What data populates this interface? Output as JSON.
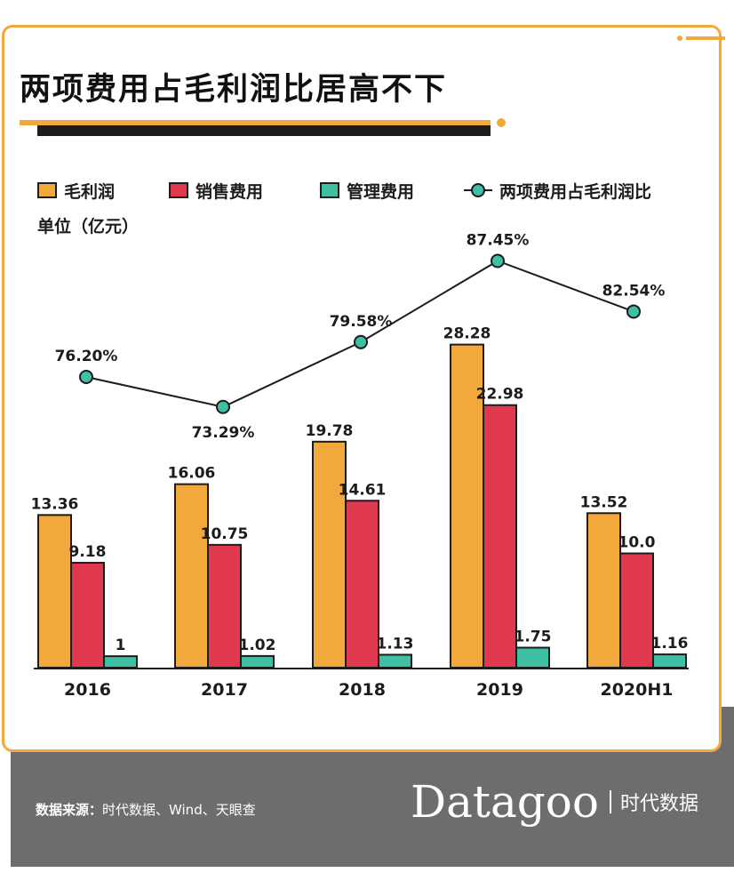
{
  "title": "两项费用占毛利润比居高不下",
  "unit": "单位（亿元）",
  "source_label": "数据来源：",
  "source_text": "时代数据、Wind、天眼查",
  "brand": {
    "name": "Datagoo",
    "chinese": "时代数据"
  },
  "colors": {
    "gross_profit": "#f0a93a",
    "sales_expense": "#e0384f",
    "admin_expense": "#3fbfa3",
    "ratio_line": "#1c1c1c",
    "accent": "#f0a93a",
    "footer": "#6e6c6f"
  },
  "legend": {
    "gross_profit": "毛利润",
    "sales_expense": "销售费用",
    "admin_expense": "管理费用",
    "ratio": "两项费用占毛利润比"
  },
  "chart_data": {
    "type": "bar",
    "categories": [
      "2016",
      "2017",
      "2018",
      "2019",
      "2020H1"
    ],
    "series": [
      {
        "name": "毛利润",
        "type": "bar",
        "values": [
          13.36,
          16.06,
          19.78,
          28.28,
          13.52
        ],
        "labels": [
          "13.36",
          "16.06",
          "19.78",
          "28.28",
          "13.52"
        ]
      },
      {
        "name": "销售费用",
        "type": "bar",
        "values": [
          9.18,
          10.75,
          14.61,
          22.98,
          10.0
        ],
        "labels": [
          "9.18",
          "10.75",
          "14.61",
          "22.98",
          "10.0"
        ]
      },
      {
        "name": "管理费用",
        "type": "bar",
        "values": [
          1,
          1.02,
          1.13,
          1.75,
          1.16
        ],
        "labels": [
          "1",
          "1.02",
          "1.13",
          "1.75",
          "1.16"
        ]
      },
      {
        "name": "两项费用占毛利润比",
        "type": "line",
        "values": [
          76.2,
          73.29,
          79.58,
          87.45,
          82.54
        ],
        "labels": [
          "76.20%",
          "73.29%",
          "79.58%",
          "87.45%",
          "82.54%"
        ]
      }
    ],
    "ylabel": "单位（亿元）",
    "legend_position": "top",
    "grid": false
  }
}
